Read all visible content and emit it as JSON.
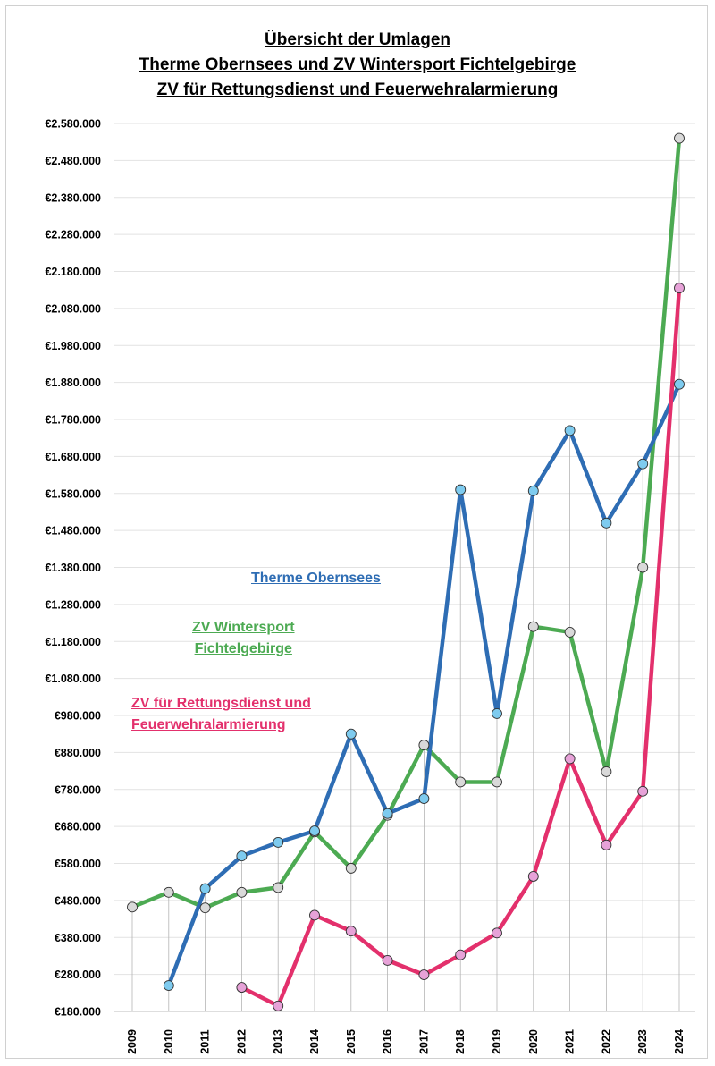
{
  "chart_data": {
    "type": "line",
    "title_lines": [
      "Übersicht der Umlagen",
      "Therme Obernsees und ZV Wintersport Fichtelgebirge",
      "ZV für Rettungsdienst und Feuerwehralarmierung"
    ],
    "x": [
      "2009",
      "2010",
      "2011",
      "2012",
      "2013",
      "2014",
      "2015",
      "2016",
      "2017",
      "2018",
      "2019",
      "2020",
      "2021",
      "2022",
      "2023",
      "2024"
    ],
    "ylim": [
      180000,
      2580000
    ],
    "y_ticks": [
      "€180.000",
      "€280.000",
      "€380.000",
      "€480.000",
      "€580.000",
      "€680.000",
      "€780.000",
      "€880.000",
      "€980.000",
      "€1.080.000",
      "€1.180.000",
      "€1.280.000",
      "€1.380.000",
      "€1.480.000",
      "€1.580.000",
      "€1.680.000",
      "€1.780.000",
      "€1.880.000",
      "€1.980.000",
      "€2.080.000",
      "€2.180.000",
      "€2.280.000",
      "€2.380.000",
      "€2.480.000",
      "€2.580.000"
    ],
    "grid": "horizontal",
    "series": [
      {
        "name": "ZV Wintersport Fichtelgebirge",
        "color": "#4caa52",
        "marker_color": "#d9d9d9",
        "values": [
          462000,
          502000,
          460000,
          502000,
          515000,
          665000,
          567000,
          710000,
          900000,
          800000,
          800000,
          1220000,
          1205000,
          828000,
          1380000,
          2540000
        ]
      },
      {
        "name": "Therme Obernsees",
        "color": "#2e6db4",
        "marker_color": "#7ecbef",
        "values": [
          null,
          250000,
          512000,
          600000,
          637000,
          668000,
          930000,
          715000,
          755000,
          1590000,
          985000,
          1587000,
          1750000,
          1500000,
          1660000,
          1875000
        ]
      },
      {
        "name": "ZV für Rettungsdienst und Feuerwehralarmierung",
        "color": "#e3306c",
        "marker_color": "#e7a2d8",
        "values": [
          null,
          null,
          null,
          245000,
          195000,
          440000,
          397000,
          318000,
          279000,
          333000,
          392000,
          545000,
          863000,
          630000,
          775000,
          2135000
        ]
      }
    ]
  },
  "annotations": {
    "therme": "Therme Obernsees",
    "winter_line1": "ZV Wintersport",
    "winter_line2": "Fichtelgebirge",
    "rettung_line1": "ZV  für Rettungsdienst und",
    "rettung_line2": "Feuerwehralarmierung"
  }
}
